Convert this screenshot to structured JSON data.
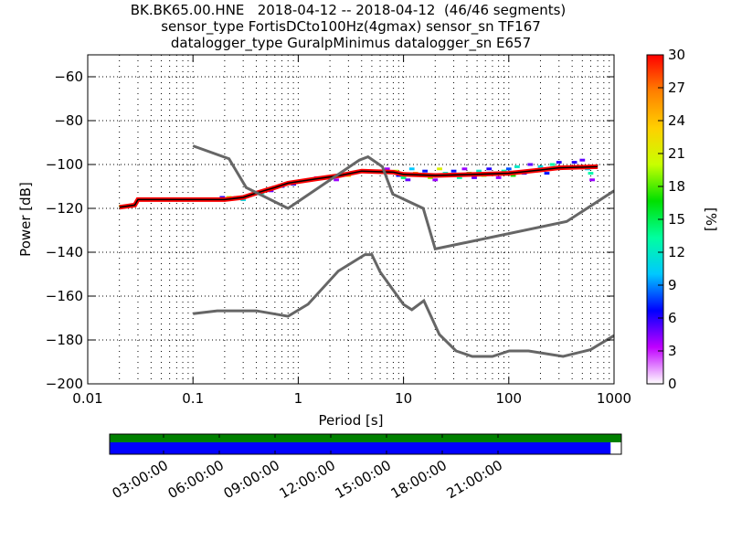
{
  "chart_data": {
    "type": "heatmap",
    "title_lines": [
      "BK.BK65.00.HNE   2018-04-12 -- 2018-04-12  (46/46 segments)",
      "sensor_type FortisDCto100Hz(4gmax) sensor_sn TF167",
      "datalogger_type GuralpMinimus datalogger_sn E657"
    ],
    "xlabel": "Period [s]",
    "ylabel": "Power [dB]",
    "xscale": "log",
    "xlim": [
      0.01,
      1000
    ],
    "ylim": [
      -200,
      -50
    ],
    "xticks": [
      0.01,
      0.1,
      1,
      10,
      100,
      1000
    ],
    "xtick_labels": [
      "0.01",
      "0.1",
      "1",
      "10",
      "100",
      "1000"
    ],
    "yticks": [
      -200,
      -180,
      -160,
      -140,
      -120,
      -100,
      -80,
      -60
    ],
    "ytick_labels": [
      "−200",
      "−180",
      "−160",
      "−140",
      "−120",
      "−100",
      "−80",
      "−60"
    ],
    "grid": "dotted",
    "colorbar": {
      "label": "[%]",
      "range": [
        0,
        30
      ],
      "ticks": [
        "0",
        "3",
        "6",
        "9",
        "12",
        "15",
        "18",
        "21",
        "24",
        "27",
        "30"
      ],
      "colors": [
        "#ffffff",
        "#c000ff",
        "#0000ff",
        "#00c8ff",
        "#00ffa0",
        "#00e000",
        "#c8ff00",
        "#ffd000",
        "#ff8000",
        "#ff0000"
      ]
    },
    "noise_models": {
      "NHNM": [
        [
          0.1,
          -91.5
        ],
        [
          0.22,
          -97.4
        ],
        [
          0.32,
          -110.5
        ],
        [
          0.8,
          -120
        ],
        [
          3.8,
          -98
        ],
        [
          4.6,
          -96.5
        ],
        [
          6.3,
          -101
        ],
        [
          7.9,
          -113.5
        ],
        [
          15.4,
          -120
        ],
        [
          20,
          -138.5
        ],
        [
          354.8,
          -126
        ],
        [
          1000,
          -112
        ]
      ],
      "NLNM": [
        [
          0.1,
          -168
        ],
        [
          0.17,
          -166.7
        ],
        [
          0.4,
          -166.7
        ],
        [
          0.8,
          -169.2
        ],
        [
          1.24,
          -163.7
        ],
        [
          2.4,
          -148.6
        ],
        [
          4.3,
          -141.1
        ],
        [
          5,
          -141.1
        ],
        [
          6,
          -149
        ],
        [
          10,
          -163.8
        ],
        [
          12,
          -166.2
        ],
        [
          15.6,
          -162.1
        ],
        [
          21.9,
          -177.5
        ],
        [
          31.6,
          -185
        ],
        [
          45,
          -187.5
        ],
        [
          70,
          -187.5
        ],
        [
          101,
          -185
        ],
        [
          154,
          -185
        ],
        [
          328,
          -187.5
        ],
        [
          600,
          -184.4
        ],
        [
          1000,
          -178
        ]
      ]
    },
    "mode_curve": [
      [
        0.02,
        -119.5
      ],
      [
        0.028,
        -118.5
      ],
      [
        0.03,
        -116
      ],
      [
        0.2,
        -116
      ],
      [
        0.3,
        -115
      ],
      [
        0.4,
        -113
      ],
      [
        0.6,
        -110.5
      ],
      [
        0.8,
        -108.5
      ],
      [
        1.5,
        -106.5
      ],
      [
        2.5,
        -105
      ],
      [
        4,
        -103
      ],
      [
        8,
        -103.5
      ],
      [
        10,
        -104.5
      ],
      [
        20,
        -105
      ],
      [
        50,
        -104.5
      ],
      [
        100,
        -104
      ],
      [
        200,
        -102.5
      ],
      [
        300,
        -101.5
      ],
      [
        700,
        -101
      ]
    ],
    "cells": [
      [
        0.021,
        -119,
        18
      ],
      [
        0.027,
        -118.5,
        26
      ],
      [
        0.19,
        -115,
        6
      ],
      [
        0.22,
        -115,
        20
      ],
      [
        0.26,
        -115,
        17
      ],
      [
        0.3,
        -116,
        11
      ],
      [
        0.45,
        -113,
        12
      ],
      [
        0.55,
        -112,
        5
      ],
      [
        0.7,
        -110,
        7
      ],
      [
        0.9,
        -109,
        6
      ],
      [
        1.3,
        -107,
        4
      ],
      [
        1.5,
        -106,
        3
      ],
      [
        1.7,
        -106,
        13
      ],
      [
        2.0,
        -106,
        19
      ],
      [
        2.3,
        -107,
        4
      ],
      [
        3.0,
        -105,
        24
      ],
      [
        4.2,
        -103,
        20
      ],
      [
        5.5,
        -103,
        9
      ],
      [
        7,
        -102,
        4
      ],
      [
        8.5,
        -103,
        20
      ],
      [
        9,
        -105,
        7
      ],
      [
        10,
        -106,
        14
      ],
      [
        11,
        -107,
        5
      ],
      [
        12,
        -102,
        10
      ],
      [
        13,
        -104,
        26
      ],
      [
        14,
        -105,
        13
      ],
      [
        16,
        -103,
        7
      ],
      [
        18,
        -106,
        19
      ],
      [
        20,
        -107,
        4
      ],
      [
        22,
        -102,
        21
      ],
      [
        25,
        -104,
        12
      ],
      [
        28,
        -105,
        15
      ],
      [
        30,
        -103,
        7
      ],
      [
        34,
        -106,
        13
      ],
      [
        38,
        -102,
        4
      ],
      [
        42,
        -104,
        17
      ],
      [
        47,
        -106,
        5
      ],
      [
        52,
        -103,
        12
      ],
      [
        58,
        -105,
        19
      ],
      [
        65,
        -102,
        6
      ],
      [
        72,
        -104,
        25
      ],
      [
        80,
        -106,
        4
      ],
      [
        90,
        -103,
        13
      ],
      [
        100,
        -102,
        8
      ],
      [
        110,
        -105,
        17
      ],
      [
        120,
        -101,
        12
      ],
      [
        140,
        -104,
        6
      ],
      [
        160,
        -100,
        5
      ],
      [
        180,
        -103,
        20
      ],
      [
        200,
        -101,
        11
      ],
      [
        230,
        -104,
        7
      ],
      [
        260,
        -100,
        13
      ],
      [
        300,
        -99,
        6
      ],
      [
        350,
        -101,
        22
      ],
      [
        420,
        -99,
        6
      ],
      [
        500,
        -98,
        5
      ],
      [
        560,
        -102,
        10
      ],
      [
        600,
        -104,
        13
      ],
      [
        620,
        -107,
        4
      ]
    ],
    "timeline": {
      "tick_labels": [
        "03:00:00",
        "06:00:00",
        "09:00:00",
        "12:00:00",
        "15:00:00",
        "18:00:00",
        "21:00:00"
      ],
      "coverage_fraction": 0.979,
      "colors": {
        "available": "#008000",
        "used": "#0000ff"
      }
    }
  }
}
